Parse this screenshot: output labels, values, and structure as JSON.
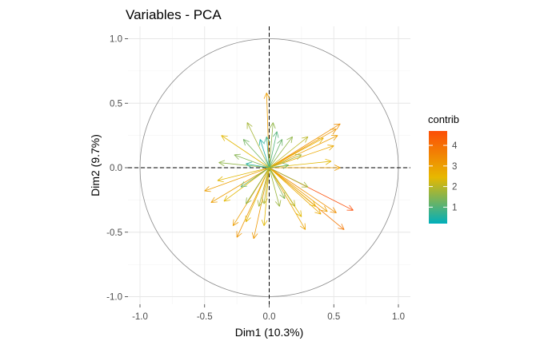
{
  "chart_data": {
    "type": "scatter",
    "subtype": "pca-variable-correlation-circle",
    "title": "Variables - PCA",
    "xlabel": "Dim1 (10.3%)",
    "ylabel": "Dim2 (9.7%)",
    "xlim": [
      -1.0,
      1.0
    ],
    "ylim": [
      -1.0,
      1.0
    ],
    "x_ticks": [
      "-1.0",
      "-0.5",
      "0.0",
      "0.5",
      "1.0"
    ],
    "y_ticks": [
      "-1.0",
      "-0.5",
      "0.0",
      "0.5",
      "1.0"
    ],
    "x_tick_values": [
      -1.0,
      -0.5,
      0.0,
      0.5,
      1.0
    ],
    "y_tick_values": [
      -1.0,
      -0.5,
      0.0,
      0.5,
      1.0
    ],
    "grid": true,
    "unit_circle": true,
    "reference_lines": "dashed lines at x=0 and y=0",
    "legend": {
      "title": "contrib",
      "placement": "right",
      "labels": [
        "1",
        "2",
        "3",
        "4"
      ],
      "label_values": [
        1,
        2,
        3,
        4
      ],
      "range": [
        0.2,
        4.7
      ],
      "gradient_colors": [
        "#00AFBB",
        "#E7B800",
        "#FC4E07"
      ]
    },
    "arrows": [
      {
        "x": 0.55,
        "y": 0.34,
        "contrib": 3.3
      },
      {
        "x": 0.52,
        "y": 0.3,
        "contrib": 3.2
      },
      {
        "x": 0.53,
        "y": 0.25,
        "contrib": 3.0
      },
      {
        "x": 0.5,
        "y": 0.17,
        "contrib": 2.8
      },
      {
        "x": 0.42,
        "y": 0.23,
        "contrib": 2.6
      },
      {
        "x": 0.48,
        "y": 0.05,
        "contrib": 2.4
      },
      {
        "x": 0.55,
        "y": 0.0,
        "contrib": 3.0
      },
      {
        "x": 0.3,
        "y": 0.24,
        "contrib": 2.0
      },
      {
        "x": 0.18,
        "y": 0.24,
        "contrib": 1.6
      },
      {
        "x": 0.25,
        "y": 0.1,
        "contrib": 1.8
      },
      {
        "x": 0.15,
        "y": 0.02,
        "contrib": 1.2
      },
      {
        "x": -0.02,
        "y": 0.58,
        "contrib": 3.0
      },
      {
        "x": 0.03,
        "y": 0.35,
        "contrib": 1.6
      },
      {
        "x": 0.06,
        "y": 0.28,
        "contrib": 1.0
      },
      {
        "x": -0.02,
        "y": 0.24,
        "contrib": 0.8
      },
      {
        "x": 0.1,
        "y": 0.22,
        "contrib": 1.2
      },
      {
        "x": -0.07,
        "y": 0.22,
        "contrib": 0.5
      },
      {
        "x": -0.17,
        "y": 0.35,
        "contrib": 1.8
      },
      {
        "x": -0.37,
        "y": 0.25,
        "contrib": 2.4
      },
      {
        "x": -0.2,
        "y": 0.22,
        "contrib": 1.3
      },
      {
        "x": -0.27,
        "y": 0.1,
        "contrib": 1.5
      },
      {
        "x": -0.39,
        "y": 0.04,
        "contrib": 1.6
      },
      {
        "x": -0.18,
        "y": 0.03,
        "contrib": 0.6
      },
      {
        "x": 0.65,
        "y": -0.33,
        "contrib": 4.7
      },
      {
        "x": 0.58,
        "y": -0.48,
        "contrib": 3.8
      },
      {
        "x": 0.52,
        "y": -0.35,
        "contrib": 3.3
      },
      {
        "x": 0.45,
        "y": -0.34,
        "contrib": 3.0
      },
      {
        "x": 0.4,
        "y": -0.36,
        "contrib": 2.8
      },
      {
        "x": 0.36,
        "y": -0.3,
        "contrib": 2.6
      },
      {
        "x": 0.28,
        "y": -0.48,
        "contrib": 2.9
      },
      {
        "x": 0.25,
        "y": -0.38,
        "contrib": 2.4
      },
      {
        "x": 0.2,
        "y": -0.3,
        "contrib": 2.0
      },
      {
        "x": 0.12,
        "y": -0.24,
        "contrib": 1.5
      },
      {
        "x": 0.3,
        "y": -0.15,
        "contrib": 1.8
      },
      {
        "x": 0.08,
        "y": -0.3,
        "contrib": 1.7
      },
      {
        "x": -0.5,
        "y": -0.18,
        "contrib": 3.0
      },
      {
        "x": -0.45,
        "y": -0.27,
        "contrib": 3.0
      },
      {
        "x": -0.35,
        "y": -0.26,
        "contrib": 2.4
      },
      {
        "x": -0.25,
        "y": -0.54,
        "contrib": 3.2
      },
      {
        "x": -0.28,
        "y": -0.45,
        "contrib": 3.0
      },
      {
        "x": -0.18,
        "y": -0.42,
        "contrib": 2.4
      },
      {
        "x": -0.12,
        "y": -0.55,
        "contrib": 3.1
      },
      {
        "x": -0.18,
        "y": -0.28,
        "contrib": 1.6
      },
      {
        "x": -0.08,
        "y": -0.3,
        "contrib": 1.8
      },
      {
        "x": -0.22,
        "y": -0.15,
        "contrib": 1.2
      },
      {
        "x": -0.4,
        "y": -0.1,
        "contrib": 2.4
      },
      {
        "x": -0.04,
        "y": -0.28,
        "contrib": 1.9
      },
      {
        "x": -0.04,
        "y": -0.45,
        "contrib": 2.4
      }
    ]
  }
}
